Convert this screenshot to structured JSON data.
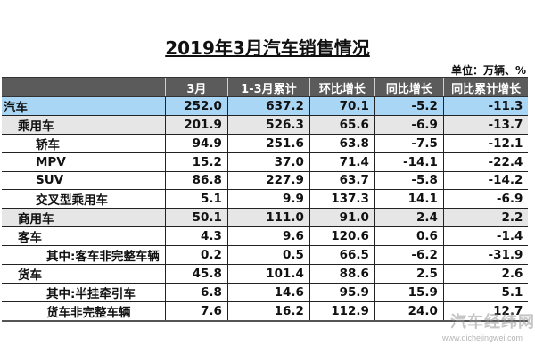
{
  "title": "2019年3月汽车销售情况",
  "unit": "单位：万辆、%",
  "table": {
    "headers": [
      "",
      "3月",
      "1-3月累计",
      "环比增长",
      "同比增长",
      "同比累计增长"
    ],
    "rows": [
      {
        "label": "汽车",
        "level": 0,
        "style": "total",
        "values": [
          "252.0",
          "637.2",
          "70.1",
          "-5.2",
          "-11.3"
        ]
      },
      {
        "label": "乘用车",
        "level": 1,
        "style": "sub",
        "values": [
          "201.9",
          "526.3",
          "65.6",
          "-6.9",
          "-13.7"
        ]
      },
      {
        "label": "轿车",
        "level": 2,
        "style": "plain",
        "values": [
          "94.9",
          "251.6",
          "63.8",
          "-7.5",
          "-12.1"
        ]
      },
      {
        "label": "MPV",
        "level": 2,
        "style": "plain",
        "values": [
          "15.2",
          "37.0",
          "71.4",
          "-14.1",
          "-22.4"
        ]
      },
      {
        "label": "SUV",
        "level": 2,
        "style": "plain",
        "values": [
          "86.8",
          "227.9",
          "63.7",
          "-5.8",
          "-14.2"
        ]
      },
      {
        "label": "交叉型乘用车",
        "level": 2,
        "style": "plain",
        "values": [
          "5.1",
          "9.9",
          "137.3",
          "14.1",
          "-6.9"
        ]
      },
      {
        "label": "商用车",
        "level": 1,
        "style": "sub",
        "values": [
          "50.1",
          "111.0",
          "91.0",
          "2.4",
          "2.2"
        ]
      },
      {
        "label": "客车",
        "level": 1,
        "style": "plain",
        "values": [
          "4.3",
          "9.6",
          "120.6",
          "0.6",
          "-1.4"
        ]
      },
      {
        "label": "其中:客车非完整车辆",
        "level": 3,
        "style": "plain",
        "values": [
          "0.2",
          "0.5",
          "66.5",
          "-6.2",
          "-31.9"
        ]
      },
      {
        "label": "货车",
        "level": 1,
        "style": "plain",
        "values": [
          "45.8",
          "101.4",
          "88.6",
          "2.5",
          "2.6"
        ]
      },
      {
        "label": "其中:半挂牵引车",
        "level": 3,
        "style": "plain",
        "values": [
          "6.8",
          "14.6",
          "95.9",
          "15.9",
          "5.1"
        ]
      },
      {
        "label": "货车非完整车辆",
        "level": 3,
        "style": "plain",
        "values": [
          "7.6",
          "16.2",
          "112.9",
          "24.0",
          "12.7"
        ]
      }
    ]
  },
  "watermark": {
    "text": "汽车经纬网",
    "url": "www.qichejingwei.com"
  },
  "colors": {
    "header_bg": "#5b5b5b",
    "total_row_bg": "#a9d6f5",
    "sub_row_bg": "#e6e6e6"
  }
}
